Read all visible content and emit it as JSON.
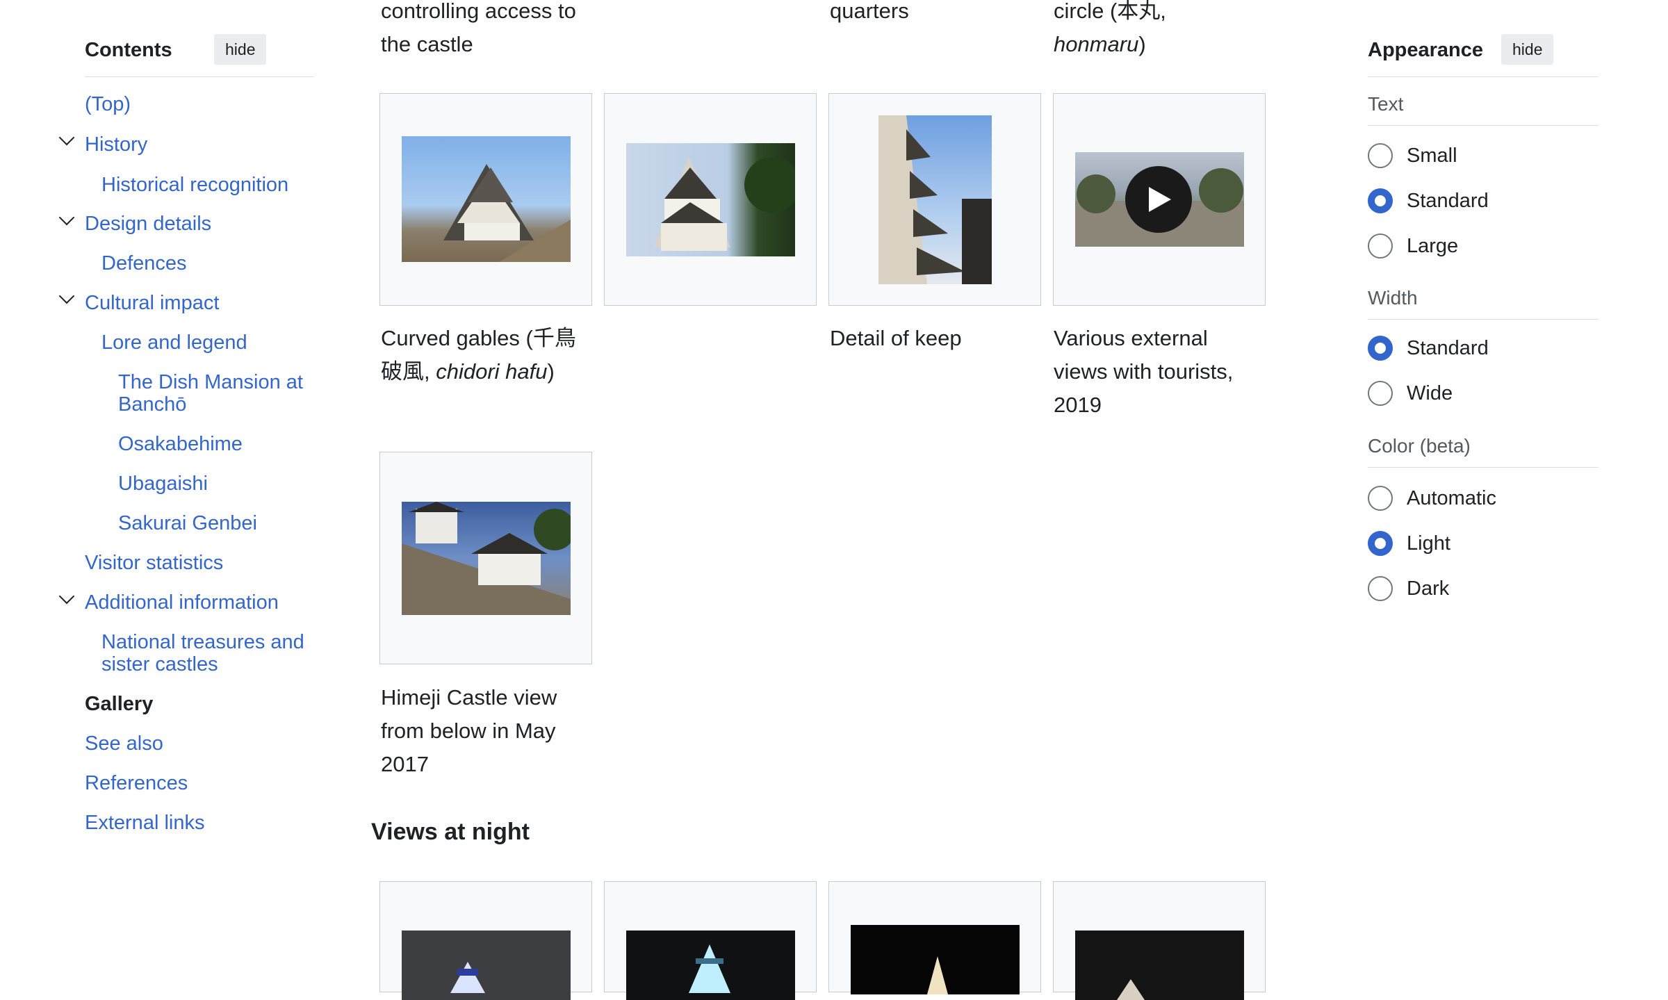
{
  "toc": {
    "title": "Contents",
    "hide_label": "hide",
    "items": [
      {
        "label": "(Top)"
      },
      {
        "label": "History"
      },
      {
        "label": "Historical recognition"
      },
      {
        "label": "Design details"
      },
      {
        "label": "Defences"
      },
      {
        "label": "Cultural impact"
      },
      {
        "label": "Lore and legend"
      },
      {
        "label": "The Dish Mansion at"
      },
      {
        "label": "Banchō"
      },
      {
        "label": "Osakabehime"
      },
      {
        "label": "Ubagaishi"
      },
      {
        "label": "Sakurai Genbei"
      },
      {
        "label": "Visitor statistics"
      },
      {
        "label": "Additional information"
      },
      {
        "label": "National treasures and"
      },
      {
        "label": "sister castles"
      },
      {
        "label": "Gallery"
      },
      {
        "label": "See also"
      },
      {
        "label": "References"
      },
      {
        "label": "External links"
      }
    ]
  },
  "gallery": {
    "top_captions": [
      {
        "line1": "controlling access to",
        "line2": "the castle"
      },
      {
        "line1": "quarters"
      },
      {
        "line1": "circle (本丸,",
        "line2": "honmaru",
        "line2_suffix": ")"
      }
    ],
    "captions": {
      "c1_a": "Curved gables (千鳥",
      "c1_b": "破風, ",
      "c1_b_italic": "chidori hafu",
      "c1_b_suffix": ")",
      "c3": "Detail of keep",
      "c4_a": "Various external",
      "c4_b": "views with tourists,",
      "c4_c": "2019",
      "c5_a": "Himeji Castle view",
      "c5_b": "from below in May",
      "c5_c": "2017"
    },
    "night_heading": "Views at night"
  },
  "appearance": {
    "title": "Appearance",
    "hide_label": "hide",
    "text_group": {
      "label": "Text",
      "options": [
        "Small",
        "Standard",
        "Large"
      ],
      "selected": "Standard"
    },
    "width_group": {
      "label": "Width",
      "options": [
        "Standard",
        "Wide"
      ],
      "selected": "Standard"
    },
    "color_group": {
      "label": "Color (beta)",
      "options": [
        "Automatic",
        "Light",
        "Dark"
      ],
      "selected": "Light"
    }
  },
  "colors": {
    "link": "#3366cc",
    "radio_checked": "#3366cc",
    "text": "#202122"
  },
  "icons": {
    "chevron": "chevron-down-icon",
    "play": "play-icon"
  }
}
